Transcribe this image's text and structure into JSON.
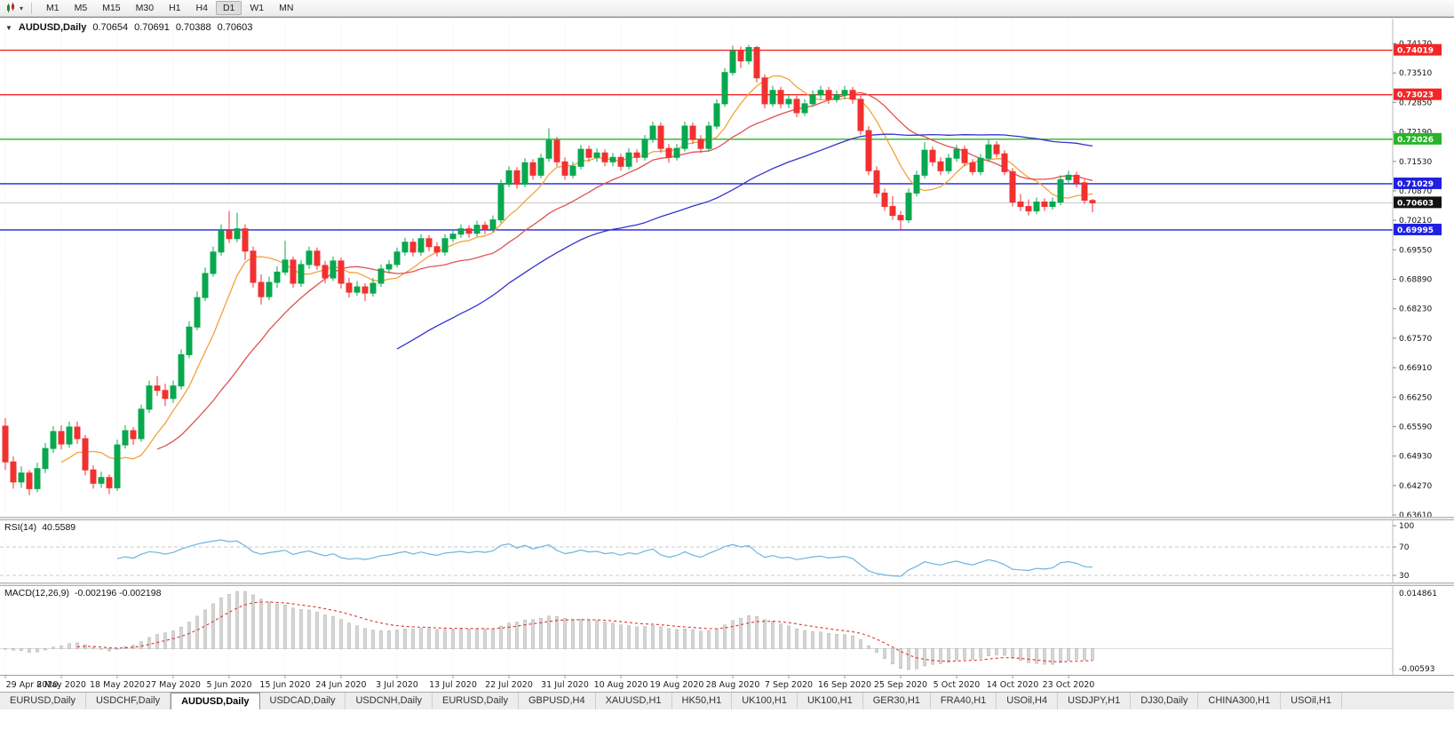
{
  "toolbar": {
    "timeframes": [
      "M1",
      "M5",
      "M15",
      "M30",
      "H1",
      "H4",
      "D1",
      "W1",
      "MN"
    ],
    "active_timeframe": "D1",
    "dropdown_caret": "▾"
  },
  "chart_header": {
    "collapse_icon": "▼",
    "symbol": "AUDUSD,Daily",
    "open": "0.70654",
    "high": "0.70691",
    "low": "0.70388",
    "close": "0.70603"
  },
  "rsi_panel": {
    "name": "RSI(14)",
    "value": "40.5589",
    "axis_labels": [
      {
        "text": "100",
        "level": 100
      },
      {
        "text": "70",
        "level": 70
      },
      {
        "text": "30",
        "level": 30
      }
    ],
    "dashed_levels": [
      70,
      30
    ],
    "line_color": "#6fb3df"
  },
  "macd_panel": {
    "name": "MACD(12,26,9)",
    "values": "-0.002196 -0.002198",
    "axis_top": "0.014861",
    "axis_bottom": "-0.00593",
    "fast": 12,
    "slow": 26,
    "signal": 9,
    "histogram_color": "#d6d6d6",
    "histogram_border": "#ababab",
    "signal_color": "#e03030"
  },
  "chart_data": {
    "type": "candlestick",
    "symbol": "AUDUSD",
    "timeframe": "Daily",
    "up_color": "#07a84e",
    "down_color": "#f23030",
    "price_range": [
      0.6361,
      0.7417
    ],
    "price_axis_labels": [
      "0.74170",
      "0.73510",
      "0.72850",
      "0.72190",
      "0.71530",
      "0.70870",
      "0.70210",
      "0.69550",
      "0.68890",
      "0.68230",
      "0.67570",
      "0.66910",
      "0.66250",
      "0.65590",
      "0.64930",
      "0.64270",
      "0.63610"
    ],
    "date_labels": [
      "29 Apr 2020",
      "8 May 2020",
      "18 May 2020",
      "27 May 2020",
      "5 Jun 2020",
      "15 Jun 2020",
      "24 Jun 2020",
      "3 Jul 2020",
      "13 Jul 2020",
      "22 Jul 2020",
      "31 Jul 2020",
      "10 Aug 2020",
      "19 Aug 2020",
      "28 Aug 2020",
      "7 Sep 2020",
      "16 Sep 2020",
      "25 Sep 2020",
      "5 Oct 2020",
      "14 Oct 2020",
      "23 Oct 2020"
    ],
    "label_interval": 7,
    "hlines": [
      {
        "value": 0.74019,
        "label": "0.74019",
        "color": "#f42525"
      },
      {
        "value": 0.73023,
        "label": "0.73023",
        "color": "#f42525"
      },
      {
        "value": 0.72026,
        "label": "0.72026",
        "color": "#27b427"
      },
      {
        "value": 0.71029,
        "label": "0.71029",
        "color": "#2020e0"
      },
      {
        "value": 0.69995,
        "label": "0.69995",
        "color": "#2020e0"
      }
    ],
    "current_price": {
      "value": 0.70603,
      "label": "0.70603",
      "color": "#111111"
    },
    "moving_averages": [
      {
        "name": "ma-fast",
        "period": 8,
        "color": "#f2a33c"
      },
      {
        "name": "ma-mid",
        "period": 20,
        "color": "#e05252"
      },
      {
        "name": "ma-slow",
        "period": 50,
        "color": "#3333cc"
      }
    ],
    "candles": [
      [
        0.656,
        0.6578,
        0.6462,
        0.648
      ],
      [
        0.648,
        0.6492,
        0.642,
        0.6435
      ],
      [
        0.6435,
        0.647,
        0.6422,
        0.6455
      ],
      [
        0.6455,
        0.6462,
        0.6405,
        0.642
      ],
      [
        0.642,
        0.6478,
        0.6412,
        0.6465
      ],
      [
        0.6465,
        0.6522,
        0.6455,
        0.651
      ],
      [
        0.651,
        0.656,
        0.65,
        0.6548
      ],
      [
        0.6548,
        0.6562,
        0.6508,
        0.652
      ],
      [
        0.652,
        0.657,
        0.6512,
        0.6558
      ],
      [
        0.6558,
        0.657,
        0.652,
        0.6532
      ],
      [
        0.6532,
        0.654,
        0.645,
        0.6462
      ],
      [
        0.6462,
        0.6472,
        0.642,
        0.6432
      ],
      [
        0.6432,
        0.6458,
        0.6422,
        0.6445
      ],
      [
        0.6445,
        0.6452,
        0.6408,
        0.6422
      ],
      [
        0.6422,
        0.653,
        0.6415,
        0.6518
      ],
      [
        0.6518,
        0.6562,
        0.651,
        0.655
      ],
      [
        0.655,
        0.6558,
        0.6518,
        0.6532
      ],
      [
        0.6532,
        0.6608,
        0.6525,
        0.6598
      ],
      [
        0.6598,
        0.6662,
        0.659,
        0.665
      ],
      [
        0.665,
        0.6672,
        0.6628,
        0.664
      ],
      [
        0.664,
        0.6655,
        0.6605,
        0.6622
      ],
      [
        0.6622,
        0.6662,
        0.6612,
        0.665
      ],
      [
        0.665,
        0.6732,
        0.6642,
        0.672
      ],
      [
        0.672,
        0.6795,
        0.6712,
        0.6782
      ],
      [
        0.6782,
        0.6862,
        0.6775,
        0.6848
      ],
      [
        0.6848,
        0.6915,
        0.684,
        0.6902
      ],
      [
        0.6902,
        0.6962,
        0.6895,
        0.695
      ],
      [
        0.695,
        0.7012,
        0.6942,
        0.6998
      ],
      [
        0.6998,
        0.7042,
        0.697,
        0.698
      ],
      [
        0.698,
        0.7038,
        0.6972,
        0.7002
      ],
      [
        0.7002,
        0.7012,
        0.6932,
        0.6952
      ],
      [
        0.6952,
        0.6962,
        0.687,
        0.6882
      ],
      [
        0.6882,
        0.69,
        0.6832,
        0.685
      ],
      [
        0.685,
        0.6895,
        0.6842,
        0.6882
      ],
      [
        0.6882,
        0.6918,
        0.687,
        0.6905
      ],
      [
        0.6905,
        0.6975,
        0.6898,
        0.6932
      ],
      [
        0.6932,
        0.694,
        0.687,
        0.688
      ],
      [
        0.688,
        0.6932,
        0.6872,
        0.6922
      ],
      [
        0.6922,
        0.6962,
        0.6912,
        0.6952
      ],
      [
        0.6952,
        0.696,
        0.691,
        0.692
      ],
      [
        0.692,
        0.693,
        0.688,
        0.6892
      ],
      [
        0.6892,
        0.694,
        0.6885,
        0.693
      ],
      [
        0.693,
        0.6938,
        0.6868,
        0.688
      ],
      [
        0.688,
        0.6892,
        0.6848,
        0.686
      ],
      [
        0.686,
        0.6885,
        0.6852,
        0.6872
      ],
      [
        0.6872,
        0.688,
        0.684,
        0.6858
      ],
      [
        0.6858,
        0.6892,
        0.685,
        0.688
      ],
      [
        0.688,
        0.6922,
        0.6872,
        0.6912
      ],
      [
        0.6912,
        0.6932,
        0.6902,
        0.6922
      ],
      [
        0.6922,
        0.696,
        0.6915,
        0.695
      ],
      [
        0.695,
        0.6982,
        0.6942,
        0.6972
      ],
      [
        0.6972,
        0.698,
        0.694,
        0.695
      ],
      [
        0.695,
        0.699,
        0.6942,
        0.698
      ],
      [
        0.698,
        0.6988,
        0.6952,
        0.6962
      ],
      [
        0.6962,
        0.6972,
        0.694,
        0.695
      ],
      [
        0.695,
        0.699,
        0.6942,
        0.698
      ],
      [
        0.698,
        0.7,
        0.6972,
        0.699
      ],
      [
        0.699,
        0.7012,
        0.6982,
        0.7002
      ],
      [
        0.7002,
        0.701,
        0.6982,
        0.6992
      ],
      [
        0.6992,
        0.702,
        0.6985,
        0.701
      ],
      [
        0.701,
        0.7018,
        0.699,
        0.7002
      ],
      [
        0.7002,
        0.7032,
        0.6995,
        0.7022
      ],
      [
        0.7022,
        0.7112,
        0.7015,
        0.7102
      ],
      [
        0.7102,
        0.7142,
        0.7095,
        0.7132
      ],
      [
        0.7132,
        0.714,
        0.7092,
        0.7102
      ],
      [
        0.7102,
        0.716,
        0.7095,
        0.715
      ],
      [
        0.715,
        0.7158,
        0.7112,
        0.7122
      ],
      [
        0.7122,
        0.717,
        0.7115,
        0.716
      ],
      [
        0.716,
        0.7227,
        0.7152,
        0.72
      ],
      [
        0.72,
        0.7208,
        0.7142,
        0.7152
      ],
      [
        0.7152,
        0.7162,
        0.7112,
        0.7122
      ],
      [
        0.7122,
        0.7152,
        0.7115,
        0.7142
      ],
      [
        0.7142,
        0.719,
        0.7135,
        0.718
      ],
      [
        0.718,
        0.7188,
        0.7152,
        0.7162
      ],
      [
        0.7162,
        0.7182,
        0.7152,
        0.7172
      ],
      [
        0.7172,
        0.718,
        0.7142,
        0.7152
      ],
      [
        0.7152,
        0.7172,
        0.7142,
        0.7162
      ],
      [
        0.7162,
        0.717,
        0.7132,
        0.7142
      ],
      [
        0.7142,
        0.7182,
        0.7135,
        0.7172
      ],
      [
        0.7172,
        0.718,
        0.715,
        0.7162
      ],
      [
        0.7162,
        0.7212,
        0.7155,
        0.7202
      ],
      [
        0.7202,
        0.7242,
        0.7195,
        0.7232
      ],
      [
        0.7232,
        0.724,
        0.7172,
        0.7182
      ],
      [
        0.7182,
        0.7192,
        0.715,
        0.7162
      ],
      [
        0.7162,
        0.7192,
        0.7155,
        0.7182
      ],
      [
        0.7182,
        0.7242,
        0.7175,
        0.7232
      ],
      [
        0.7232,
        0.724,
        0.7192,
        0.7202
      ],
      [
        0.7202,
        0.7212,
        0.7172,
        0.7182
      ],
      [
        0.7182,
        0.7242,
        0.7175,
        0.7232
      ],
      [
        0.7232,
        0.7292,
        0.7225,
        0.7282
      ],
      [
        0.7282,
        0.7362,
        0.7275,
        0.7352
      ],
      [
        0.7352,
        0.7412,
        0.7345,
        0.74
      ],
      [
        0.74,
        0.741,
        0.7362,
        0.7378
      ],
      [
        0.7378,
        0.7414,
        0.737,
        0.7408
      ],
      [
        0.7408,
        0.7412,
        0.733,
        0.734
      ],
      [
        0.734,
        0.7348,
        0.7272,
        0.7282
      ],
      [
        0.7282,
        0.7322,
        0.7275,
        0.7312
      ],
      [
        0.7312,
        0.732,
        0.7272,
        0.7282
      ],
      [
        0.7282,
        0.7302,
        0.7272,
        0.7292
      ],
      [
        0.7292,
        0.73,
        0.7252,
        0.7262
      ],
      [
        0.7262,
        0.7292,
        0.7255,
        0.7282
      ],
      [
        0.7282,
        0.7312,
        0.7275,
        0.7302
      ],
      [
        0.7302,
        0.7322,
        0.7292,
        0.7312
      ],
      [
        0.7312,
        0.732,
        0.7282,
        0.7292
      ],
      [
        0.7292,
        0.7312,
        0.7285,
        0.7302
      ],
      [
        0.7302,
        0.7322,
        0.7292,
        0.7312
      ],
      [
        0.7312,
        0.732,
        0.7282,
        0.7292
      ],
      [
        0.7292,
        0.73,
        0.7212,
        0.7222
      ],
      [
        0.7222,
        0.7232,
        0.7122,
        0.7132
      ],
      [
        0.7132,
        0.7142,
        0.7072,
        0.7082
      ],
      [
        0.7082,
        0.7092,
        0.7042,
        0.7052
      ],
      [
        0.7052,
        0.7075,
        0.7022,
        0.7032
      ],
      [
        0.7032,
        0.7042,
        0.7,
        0.7022
      ],
      [
        0.7022,
        0.7092,
        0.7015,
        0.7082
      ],
      [
        0.7082,
        0.7132,
        0.7075,
        0.7122
      ],
      [
        0.7122,
        0.7196,
        0.7115,
        0.7178
      ],
      [
        0.7178,
        0.7186,
        0.7142,
        0.7152
      ],
      [
        0.7152,
        0.7162,
        0.7122,
        0.7132
      ],
      [
        0.7132,
        0.717,
        0.7125,
        0.716
      ],
      [
        0.716,
        0.719,
        0.7152,
        0.718
      ],
      [
        0.718,
        0.7188,
        0.7142,
        0.715
      ],
      [
        0.715,
        0.7158,
        0.7122,
        0.713
      ],
      [
        0.713,
        0.717,
        0.7122,
        0.716
      ],
      [
        0.716,
        0.7202,
        0.7152,
        0.719
      ],
      [
        0.719,
        0.7198,
        0.7162,
        0.717
      ],
      [
        0.717,
        0.7178,
        0.7122,
        0.713
      ],
      [
        0.713,
        0.7138,
        0.7052,
        0.7062
      ],
      [
        0.7062,
        0.708,
        0.7042,
        0.7052
      ],
      [
        0.7052,
        0.7068,
        0.7032,
        0.7042
      ],
      [
        0.7042,
        0.7072,
        0.7035,
        0.7062
      ],
      [
        0.7062,
        0.707,
        0.7042,
        0.7052
      ],
      [
        0.7052,
        0.7072,
        0.7045,
        0.7062
      ],
      [
        0.7062,
        0.7122,
        0.7055,
        0.7112
      ],
      [
        0.7112,
        0.7132,
        0.7102,
        0.7122
      ],
      [
        0.7122,
        0.713,
        0.7095,
        0.7105
      ],
      [
        0.7105,
        0.7112,
        0.7058,
        0.7066
      ],
      [
        0.70654,
        0.70691,
        0.70388,
        0.70603
      ]
    ]
  },
  "tabs": {
    "active_index": 2,
    "items": [
      "EURUSD,Daily",
      "USDCHF,Daily",
      "AUDUSD,Daily",
      "USDCAD,Daily",
      "USDCNH,Daily",
      "EURUSD,Daily",
      "GBPUSD,H4",
      "XAUUSD,H1",
      "HK50,H1",
      "UK100,H1",
      "UK100,H1",
      "GER30,H1",
      "FRA40,H1",
      "USOil,H4",
      "USDJPY,H1",
      "DJ30,Daily",
      "CHINA300,H1",
      "USOil,H1"
    ]
  }
}
